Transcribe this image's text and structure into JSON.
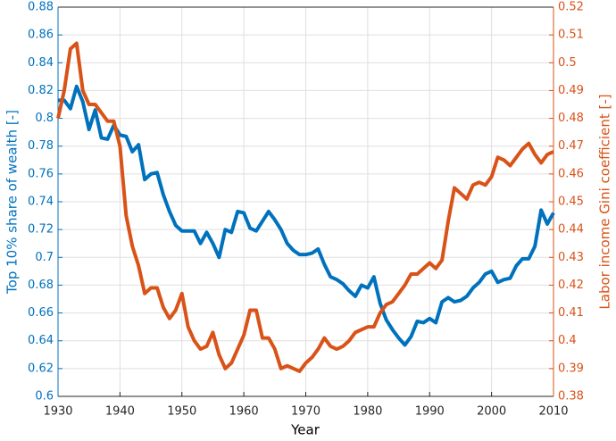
{
  "chart_data": {
    "type": "line",
    "xlabel": "Year",
    "ylabel": "Top 10% share of wealth [-]",
    "y2label": "Labor income Gini coefficient [-]",
    "x": [
      1930,
      1931,
      1932,
      1933,
      1934,
      1935,
      1936,
      1937,
      1938,
      1939,
      1940,
      1941,
      1942,
      1943,
      1944,
      1945,
      1946,
      1947,
      1948,
      1949,
      1950,
      1951,
      1952,
      1953,
      1954,
      1955,
      1956,
      1957,
      1958,
      1959,
      1960,
      1961,
      1962,
      1963,
      1964,
      1965,
      1966,
      1967,
      1968,
      1969,
      1970,
      1971,
      1972,
      1973,
      1974,
      1975,
      1976,
      1977,
      1978,
      1979,
      1980,
      1981,
      1982,
      1983,
      1984,
      1985,
      1986,
      1987,
      1988,
      1989,
      1990,
      1991,
      1992,
      1993,
      1994,
      1995,
      1996,
      1997,
      1998,
      1999,
      2000,
      2001,
      2002,
      2003,
      2004,
      2005,
      2006,
      2007,
      2008,
      2009,
      2010
    ],
    "series": [
      {
        "color": "#0072BD",
        "axis": "y",
        "values": [
          0.813,
          0.813,
          0.807,
          0.823,
          0.812,
          0.792,
          0.806,
          0.786,
          0.785,
          0.795,
          0.788,
          0.787,
          0.776,
          0.781,
          0.756,
          0.76,
          0.761,
          0.745,
          0.733,
          0.723,
          0.719,
          0.719,
          0.719,
          0.71,
          0.718,
          0.71,
          0.7,
          0.72,
          0.718,
          0.733,
          0.732,
          0.721,
          0.719,
          0.726,
          0.733,
          0.727,
          0.72,
          0.71,
          0.705,
          0.702,
          0.702,
          0.703,
          0.706,
          0.695,
          0.686,
          0.684,
          0.681,
          0.676,
          0.672,
          0.68,
          0.678,
          0.686,
          0.667,
          0.655,
          0.648,
          0.642,
          0.637,
          0.643,
          0.654,
          0.653,
          0.656,
          0.653,
          0.668,
          0.671,
          0.668,
          0.669,
          0.672,
          0.678,
          0.682,
          0.688,
          0.69,
          0.682,
          0.684,
          0.685,
          0.694,
          0.699,
          0.699,
          0.708,
          0.734,
          0.724,
          0.732
        ]
      },
      {
        "color": "#D95319",
        "axis": "y2",
        "values": [
          0.48,
          0.49,
          0.505,
          0.507,
          0.49,
          0.485,
          0.485,
          0.482,
          0.479,
          0.479,
          0.47,
          0.445,
          0.434,
          0.427,
          0.417,
          0.419,
          0.419,
          0.412,
          0.408,
          0.411,
          0.417,
          0.405,
          0.4,
          0.397,
          0.398,
          0.403,
          0.395,
          0.39,
          0.392,
          0.397,
          0.402,
          0.411,
          0.411,
          0.401,
          0.401,
          0.397,
          0.39,
          0.391,
          0.39,
          0.389,
          0.392,
          0.394,
          0.397,
          0.401,
          0.398,
          0.397,
          0.398,
          0.4,
          0.403,
          0.404,
          0.405,
          0.405,
          0.41,
          0.413,
          0.414,
          0.417,
          0.42,
          0.424,
          0.424,
          0.426,
          0.428,
          0.426,
          0.429,
          0.443,
          0.455,
          0.453,
          0.451,
          0.456,
          0.457,
          0.456,
          0.459,
          0.466,
          0.465,
          0.463,
          0.466,
          0.469,
          0.471,
          0.467,
          0.464,
          0.467,
          0.468
        ]
      }
    ],
    "xlim": [
      1930,
      2010
    ],
    "xticks": [
      1930,
      1940,
      1950,
      1960,
      1970,
      1980,
      1990,
      2000,
      2010
    ],
    "ylim": [
      0.6,
      0.88
    ],
    "yticks": [
      0.6,
      0.62,
      0.64,
      0.66,
      0.68,
      0.7,
      0.72,
      0.74,
      0.76,
      0.78,
      0.8,
      0.82,
      0.84,
      0.86,
      0.88
    ],
    "y2lim": [
      0.38,
      0.52
    ],
    "y2ticks": [
      0.38,
      0.39,
      0.4,
      0.41,
      0.42,
      0.43,
      0.44,
      0.45,
      0.46,
      0.47,
      0.48,
      0.49,
      0.5,
      0.51,
      0.52
    ],
    "grid": true
  }
}
